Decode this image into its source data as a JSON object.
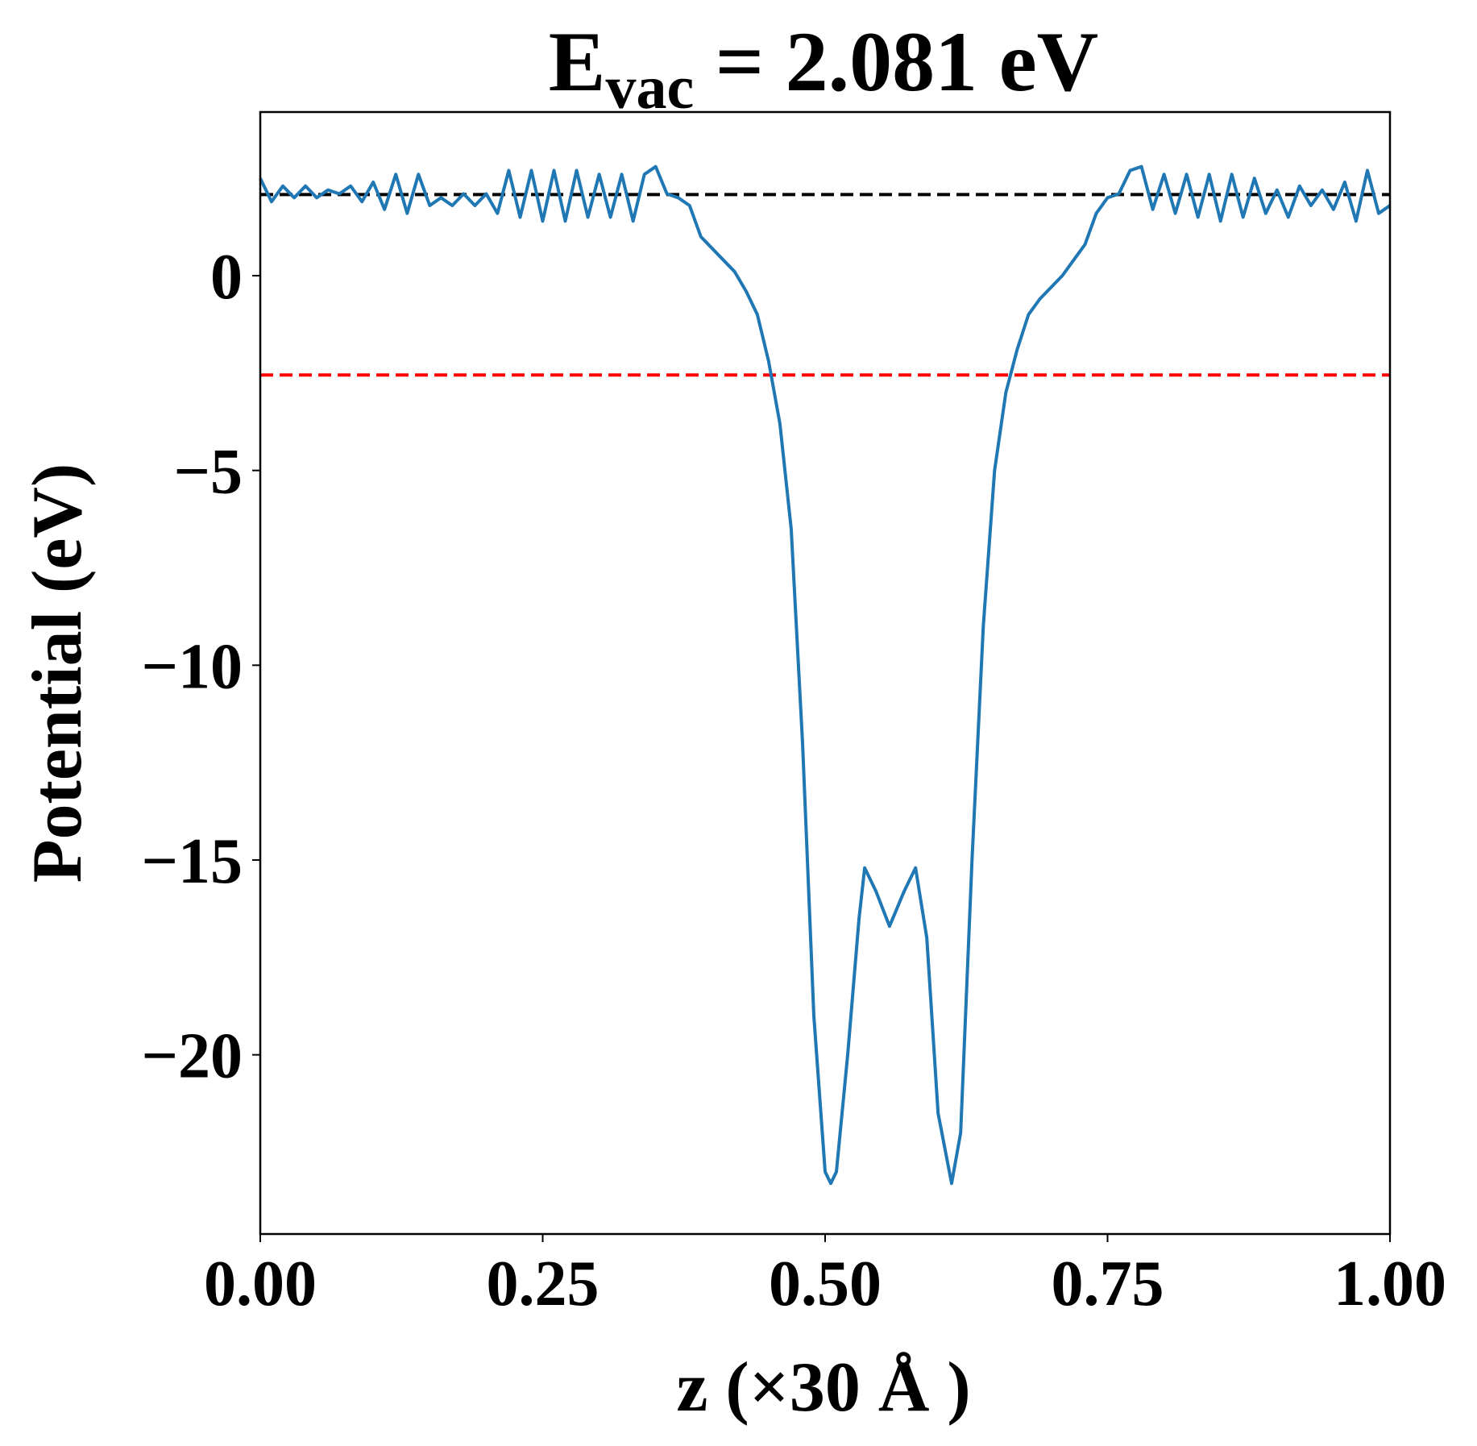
{
  "chart_data": {
    "type": "line",
    "title": {
      "main": "E",
      "subscript": "vac",
      "rest": " = 2.081 eV"
    },
    "xlabel": "z (×30 Å )",
    "ylabel": "Potential (eV)",
    "x": [
      0.0,
      0.01,
      0.02,
      0.03,
      0.04,
      0.05,
      0.06,
      0.07,
      0.08,
      0.09,
      0.1,
      0.11,
      0.12,
      0.13,
      0.14,
      0.15,
      0.16,
      0.17,
      0.18,
      0.19,
      0.2,
      0.21,
      0.22,
      0.23,
      0.24,
      0.25,
      0.26,
      0.27,
      0.28,
      0.29,
      0.3,
      0.31,
      0.32,
      0.33,
      0.34,
      0.35,
      0.36,
      0.37,
      0.38,
      0.39,
      0.4,
      0.41,
      0.42,
      0.43,
      0.44,
      0.45,
      0.46,
      0.47,
      0.48,
      0.49,
      0.5,
      0.505,
      0.51,
      0.52,
      0.53,
      0.535,
      0.545,
      0.557,
      0.57,
      0.58,
      0.59,
      0.6,
      0.612,
      0.62,
      0.63,
      0.64,
      0.65,
      0.66,
      0.67,
      0.68,
      0.69,
      0.7,
      0.71,
      0.72,
      0.73,
      0.74,
      0.75,
      0.76,
      0.77,
      0.78,
      0.79,
      0.8,
      0.81,
      0.82,
      0.83,
      0.84,
      0.85,
      0.86,
      0.87,
      0.88,
      0.89,
      0.9,
      0.91,
      0.92,
      0.93,
      0.94,
      0.95,
      0.96,
      0.97,
      0.98,
      0.99,
      1.0
    ],
    "series": [
      {
        "color": "#1f77b4",
        "values": [
          2.5,
          1.9,
          2.3,
          2.0,
          2.3,
          2.0,
          2.2,
          2.1,
          2.3,
          1.9,
          2.4,
          1.7,
          2.6,
          1.6,
          2.6,
          1.8,
          2.0,
          1.8,
          2.1,
          1.8,
          2.1,
          1.6,
          2.7,
          1.5,
          2.7,
          1.4,
          2.7,
          1.4,
          2.7,
          1.5,
          2.6,
          1.5,
          2.6,
          1.4,
          2.6,
          2.8,
          2.1,
          2.0,
          1.8,
          1.0,
          0.7,
          0.4,
          0.1,
          -0.4,
          -1.0,
          -2.2,
          -3.8,
          -6.5,
          -12.0,
          -19.0,
          -23.0,
          -23.3,
          -23.0,
          -20.0,
          -16.5,
          -15.2,
          -15.8,
          -16.7,
          -15.8,
          -15.2,
          -17.0,
          -21.5,
          -23.3,
          -22.0,
          -15.0,
          -9.0,
          -5.0,
          -3.0,
          -1.9,
          -1.0,
          -0.6,
          -0.3,
          0.0,
          0.4,
          0.8,
          1.6,
          2.0,
          2.1,
          2.7,
          2.8,
          1.7,
          2.6,
          1.6,
          2.6,
          1.5,
          2.6,
          1.4,
          2.6,
          1.5,
          2.5,
          1.6,
          2.2,
          1.5,
          2.3,
          1.8,
          2.2,
          1.7,
          2.4,
          1.4,
          2.7,
          1.6,
          1.8
        ]
      }
    ],
    "hlines": [
      {
        "value": 2.081,
        "color": "#000000"
      },
      {
        "value": -2.55,
        "color": "#ff0000"
      }
    ],
    "xlim": [
      0,
      1
    ],
    "ylim": [
      -24.6,
      4.2
    ],
    "xticks": [
      {
        "value": 0,
        "label": "0.00"
      },
      {
        "value": 0.25,
        "label": "0.25"
      },
      {
        "value": 0.5,
        "label": "0.50"
      },
      {
        "value": 0.75,
        "label": "0.75"
      },
      {
        "value": 1,
        "label": "1.00"
      }
    ],
    "yticks": [
      {
        "value": -20,
        "label": "−20"
      },
      {
        "value": -15,
        "label": "−15"
      },
      {
        "value": -10,
        "label": "−10"
      },
      {
        "value": -5,
        "label": "−5"
      },
      0
    ]
  }
}
